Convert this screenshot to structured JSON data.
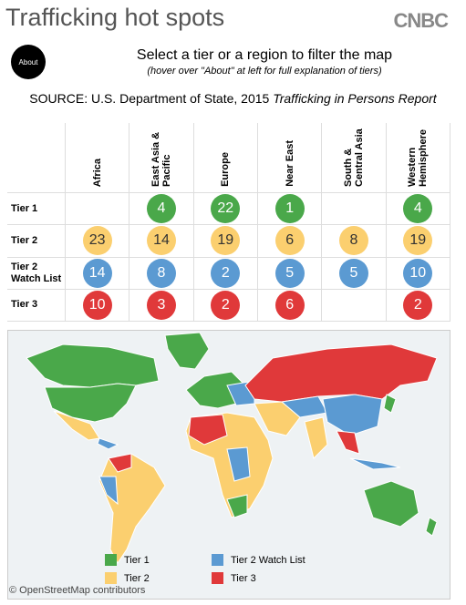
{
  "header": {
    "title": "Trafficking hot spots",
    "logo": "CNBC"
  },
  "about": "About",
  "instruction": "Select a tier or a region to filter the map",
  "hint": "(hover over \"About\" at left for full explanation of tiers)",
  "source": {
    "prefix": "SOURCE: U.S. Department of State, 2015",
    "report": "Trafficking in Persons Report"
  },
  "table": {
    "columns": [
      "Africa",
      "East Asia & Pacific",
      "Europe",
      "Near East",
      "South & Central Asia",
      "Western Hemisphere"
    ],
    "rows": [
      {
        "label": "Tier 1",
        "color": "#4aa84a",
        "cells": [
          null,
          4,
          22,
          1,
          null,
          4
        ]
      },
      {
        "label": "Tier 2",
        "color": "#fbcf6f",
        "cells": [
          23,
          14,
          19,
          6,
          8,
          19
        ]
      },
      {
        "label": "Tier 2 Watch List",
        "color": "#5b9ad2",
        "cells": [
          14,
          8,
          2,
          5,
          5,
          10
        ]
      },
      {
        "label": "Tier 3",
        "color": "#e0393a",
        "cells": [
          10,
          3,
          2,
          6,
          null,
          2
        ]
      }
    ]
  },
  "legend": [
    {
      "label": "Tier 1",
      "color": "#4aa84a"
    },
    {
      "label": "Tier 2",
      "color": "#fbcf6f"
    },
    {
      "label": "Tier 2 Watch List",
      "color": "#5b9ad2"
    },
    {
      "label": "Tier 3",
      "color": "#e0393a"
    }
  ],
  "attribution": "© OpenStreetMap contributors"
}
